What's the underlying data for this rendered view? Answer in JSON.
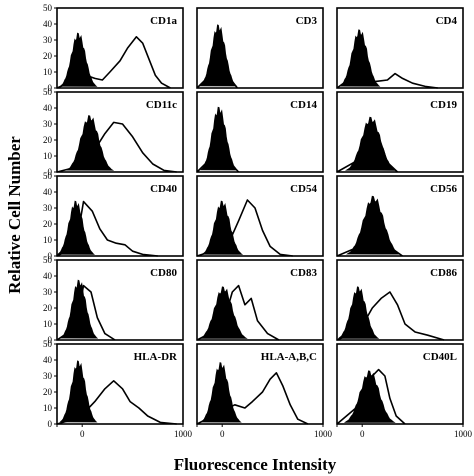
{
  "chart_data": {
    "type": "histogram-grid",
    "xlabel": "Fluorescence Intensity",
    "ylabel": "Relative Cell Number",
    "xlim": [
      0,
      1000
    ],
    "ylim": [
      0,
      50
    ],
    "y_ticks": [
      "0",
      "10",
      "20",
      "30",
      "40",
      "50"
    ],
    "x_ticks": [
      "0",
      "1000"
    ],
    "panels": [
      {
        "label": "CD1a",
        "control_peak": {
          "x": 170,
          "y": 33,
          "w": 55
        },
        "stain": [
          [
            0,
            0
          ],
          [
            150,
            5
          ],
          [
            230,
            8
          ],
          [
            300,
            6
          ],
          [
            360,
            5
          ],
          [
            420,
            10
          ],
          [
            500,
            17
          ],
          [
            560,
            25
          ],
          [
            630,
            32
          ],
          [
            680,
            28
          ],
          [
            730,
            18
          ],
          [
            780,
            8
          ],
          [
            830,
            3
          ],
          [
            900,
            0
          ]
        ]
      },
      {
        "label": "CD3",
        "control_peak": {
          "x": 170,
          "y": 38,
          "w": 55
        },
        "stain": [
          [
            0,
            0
          ],
          [
            130,
            10
          ],
          [
            170,
            36
          ],
          [
            220,
            22
          ],
          [
            260,
            6
          ],
          [
            320,
            0
          ]
        ]
      },
      {
        "label": "CD4",
        "control_peak": {
          "x": 180,
          "y": 35,
          "w": 60
        },
        "stain": [
          [
            0,
            0
          ],
          [
            140,
            8
          ],
          [
            180,
            32
          ],
          [
            230,
            12
          ],
          [
            300,
            4
          ],
          [
            400,
            5
          ],
          [
            460,
            9
          ],
          [
            520,
            6
          ],
          [
            600,
            3
          ],
          [
            700,
            1
          ],
          [
            800,
            0
          ]
        ]
      },
      {
        "label": "CD11c",
        "control_peak": {
          "x": 260,
          "y": 34,
          "w": 70
        },
        "stain": [
          [
            0,
            0
          ],
          [
            200,
            4
          ],
          [
            300,
            14
          ],
          [
            380,
            24
          ],
          [
            450,
            31
          ],
          [
            520,
            30
          ],
          [
            600,
            22
          ],
          [
            680,
            12
          ],
          [
            760,
            5
          ],
          [
            850,
            1
          ],
          [
            950,
            0
          ]
        ]
      },
      {
        "label": "CD14",
        "control_peak": {
          "x": 175,
          "y": 39,
          "w": 55
        },
        "stain": [
          [
            0,
            0
          ],
          [
            130,
            10
          ],
          [
            175,
            37
          ],
          [
            225,
            20
          ],
          [
            270,
            5
          ],
          [
            330,
            0
          ]
        ]
      },
      {
        "label": "CD19",
        "control_peak": {
          "x": 270,
          "y": 33,
          "w": 75
        },
        "stain": [
          [
            0,
            0
          ],
          [
            180,
            8
          ],
          [
            270,
            31
          ],
          [
            340,
            20
          ],
          [
            400,
            6
          ],
          [
            480,
            0
          ]
        ]
      },
      {
        "label": "CD40",
        "control_peak": {
          "x": 150,
          "y": 33,
          "w": 55
        },
        "stain": [
          [
            0,
            0
          ],
          [
            150,
            6
          ],
          [
            210,
            34
          ],
          [
            280,
            28
          ],
          [
            340,
            17
          ],
          [
            400,
            10
          ],
          [
            470,
            8
          ],
          [
            540,
            7
          ],
          [
            600,
            3
          ],
          [
            680,
            1
          ],
          [
            800,
            0
          ]
        ]
      },
      {
        "label": "CD54",
        "control_peak": {
          "x": 200,
          "y": 33,
          "w": 60
        },
        "stain": [
          [
            0,
            0
          ],
          [
            240,
            6
          ],
          [
            330,
            22
          ],
          [
            400,
            35
          ],
          [
            460,
            30
          ],
          [
            520,
            16
          ],
          [
            580,
            6
          ],
          [
            660,
            1
          ],
          [
            760,
            0
          ]
        ]
      },
      {
        "label": "CD56",
        "control_peak": {
          "x": 290,
          "y": 36,
          "w": 80
        },
        "stain": [
          [
            0,
            0
          ],
          [
            180,
            6
          ],
          [
            290,
            34
          ],
          [
            360,
            20
          ],
          [
            430,
            5
          ],
          [
            520,
            0
          ]
        ]
      },
      {
        "label": "CD80",
        "control_peak": {
          "x": 175,
          "y": 36,
          "w": 55
        },
        "stain": [
          [
            0,
            0
          ],
          [
            150,
            8
          ],
          [
            210,
            34
          ],
          [
            270,
            30
          ],
          [
            320,
            14
          ],
          [
            380,
            4
          ],
          [
            460,
            0
          ]
        ]
      },
      {
        "label": "CD83",
        "control_peak": {
          "x": 210,
          "y": 32,
          "w": 70
        },
        "stain": [
          [
            0,
            0
          ],
          [
            200,
            8
          ],
          [
            280,
            30
          ],
          [
            330,
            34
          ],
          [
            380,
            22
          ],
          [
            430,
            26
          ],
          [
            480,
            12
          ],
          [
            560,
            4
          ],
          [
            650,
            0
          ]
        ]
      },
      {
        "label": "CD86",
        "control_peak": {
          "x": 170,
          "y": 32,
          "w": 60
        },
        "stain": [
          [
            0,
            0
          ],
          [
            180,
            6
          ],
          [
            280,
            20
          ],
          [
            350,
            26
          ],
          [
            420,
            30
          ],
          [
            480,
            22
          ],
          [
            540,
            10
          ],
          [
            620,
            5
          ],
          [
            720,
            3
          ],
          [
            850,
            0
          ]
        ]
      },
      {
        "label": "HLA-DR",
        "control_peak": {
          "x": 170,
          "y": 38,
          "w": 55
        },
        "stain": [
          [
            0,
            0
          ],
          [
            180,
            4
          ],
          [
            300,
            14
          ],
          [
            380,
            22
          ],
          [
            450,
            27
          ],
          [
            520,
            22
          ],
          [
            580,
            14
          ],
          [
            650,
            10
          ],
          [
            720,
            5
          ],
          [
            820,
            1
          ],
          [
            950,
            0
          ]
        ]
      },
      {
        "label": "HLA-A,B,C",
        "control_peak": {
          "x": 190,
          "y": 37,
          "w": 60
        },
        "stain": [
          [
            0,
            0
          ],
          [
            200,
            8
          ],
          [
            300,
            12
          ],
          [
            380,
            10
          ],
          [
            440,
            14
          ],
          [
            520,
            20
          ],
          [
            580,
            28
          ],
          [
            630,
            32
          ],
          [
            680,
            24
          ],
          [
            740,
            12
          ],
          [
            800,
            3
          ],
          [
            880,
            0
          ]
        ]
      },
      {
        "label": "CD40L",
        "control_peak": {
          "x": 260,
          "y": 32,
          "w": 75
        },
        "stain": [
          [
            0,
            0
          ],
          [
            150,
            10
          ],
          [
            220,
            24
          ],
          [
            280,
            30
          ],
          [
            330,
            34
          ],
          [
            380,
            30
          ],
          [
            420,
            16
          ],
          [
            470,
            5
          ],
          [
            540,
            0
          ]
        ]
      }
    ]
  }
}
